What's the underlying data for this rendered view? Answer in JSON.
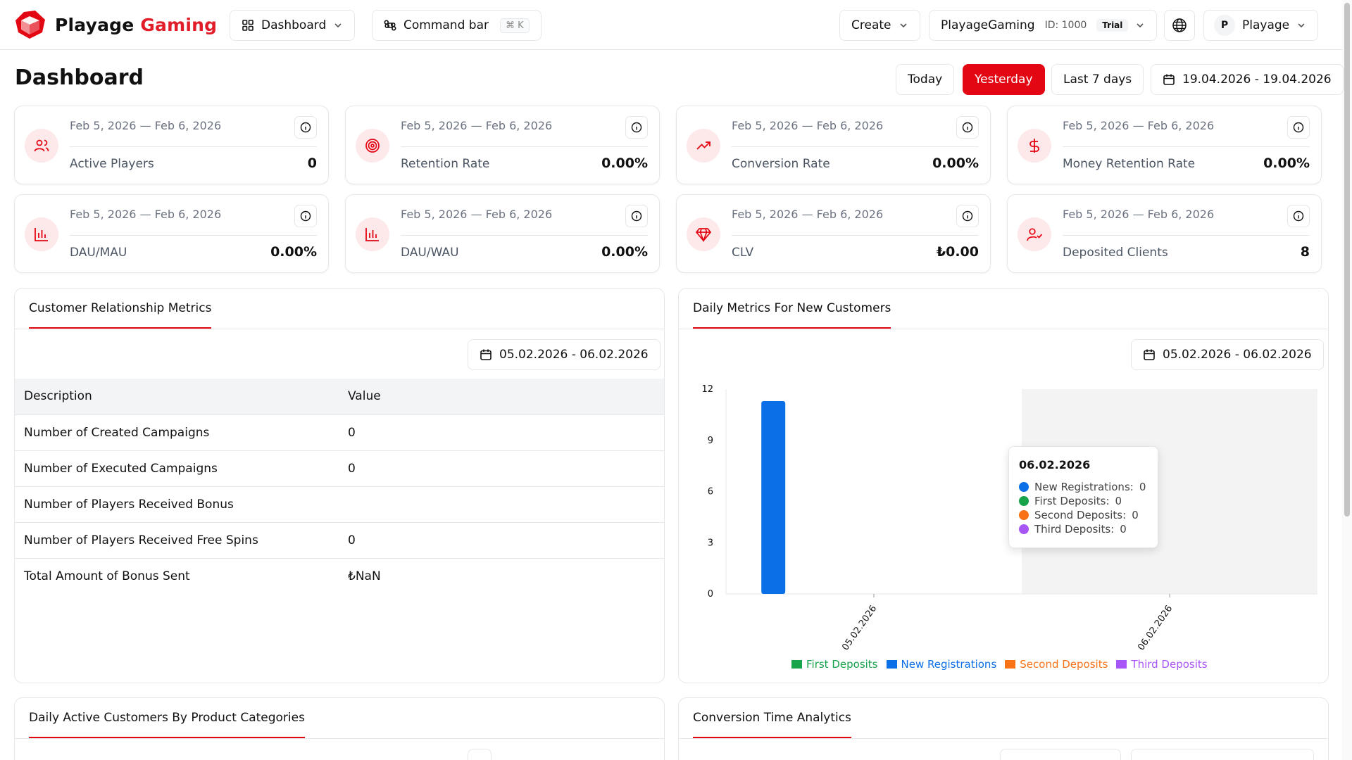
{
  "brand": {
    "name_part1": "Playage",
    "name_part2": "Gaming"
  },
  "topbar": {
    "dashboard_label": "Dashboard",
    "command_bar_label": "Command bar",
    "command_shortcut": "⌘ K",
    "create_label": "Create",
    "org_name": "PlayageGaming",
    "org_id": "ID: 1000",
    "org_badge": "Trial",
    "user_initial": "P",
    "user_name": "Playage"
  },
  "page_title": "Dashboard",
  "ranges": {
    "today": "Today",
    "yesterday": "Yesterday",
    "last7": "Last 7 days",
    "custom": "19.04.2026 - 19.04.2026"
  },
  "kpis": [
    {
      "date": "Feb 5, 2026 — Feb 6, 2026",
      "label": "Active Players",
      "value": "0",
      "icon": "users-icon"
    },
    {
      "date": "Feb 5, 2026 — Feb 6, 2026",
      "label": "Retention Rate",
      "value": "0.00%",
      "icon": "target-icon"
    },
    {
      "date": "Feb 5, 2026 — Feb 6, 2026",
      "label": "Conversion Rate",
      "value": "0.00%",
      "icon": "trending-up-icon"
    },
    {
      "date": "Feb 5, 2026 — Feb 6, 2026",
      "label": "Money Retention Rate",
      "value": "0.00%",
      "icon": "dollar-icon"
    },
    {
      "date": "Feb 5, 2026 — Feb 6, 2026",
      "label": "DAU/MAU",
      "value": "0.00%",
      "icon": "bar-chart-icon"
    },
    {
      "date": "Feb 5, 2026 — Feb 6, 2026",
      "label": "DAU/WAU",
      "value": "0.00%",
      "icon": "bar-chart-icon"
    },
    {
      "date": "Feb 5, 2026 — Feb 6, 2026",
      "label": "CLV",
      "value": "₺0.00",
      "icon": "gem-icon"
    },
    {
      "date": "Feb 5, 2026 — Feb 6, 2026",
      "label": "Deposited Clients",
      "value": "8",
      "icon": "user-check-icon"
    }
  ],
  "crm": {
    "tab": "Customer Relationship Metrics",
    "date_range": "05.02.2026 - 06.02.2026",
    "headers": {
      "description": "Description",
      "value": "Value"
    },
    "rows": [
      {
        "description": "Number of Created Campaigns",
        "value": "0"
      },
      {
        "description": "Number of Executed Campaigns",
        "value": "0"
      },
      {
        "description": "Number of Players Received Bonus",
        "value": ""
      },
      {
        "description": "Number of Players Received Free Spins",
        "value": "0"
      },
      {
        "description": "Total Amount of Bonus Sent",
        "value": "₺NaN"
      }
    ]
  },
  "daily": {
    "tab": "Daily Metrics For New Customers",
    "date_range": "05.02.2026 - 06.02.2026",
    "tooltip": {
      "date": "06.02.2026",
      "rows": [
        {
          "label": "New Registrations:",
          "value": "0"
        },
        {
          "label": "First Deposits:",
          "value": "0"
        },
        {
          "label": "Second Deposits:",
          "value": "0"
        },
        {
          "label": "Third Deposits:",
          "value": "0"
        }
      ]
    }
  },
  "chart_data": {
    "type": "bar",
    "categories": [
      "05.02.2026",
      "06.02.2026"
    ],
    "series": [
      {
        "name": "First Deposits",
        "values": [
          0,
          0
        ],
        "color": "#16a34a"
      },
      {
        "name": "New Registrations",
        "values": [
          11.3,
          0
        ],
        "color": "#0b6fe8"
      },
      {
        "name": "Second Deposits",
        "values": [
          0,
          0
        ],
        "color": "#f97316"
      },
      {
        "name": "Third Deposits",
        "values": [
          0,
          0
        ],
        "color": "#a855f7"
      }
    ],
    "yticks": [
      "0",
      "3",
      "6",
      "9",
      "12"
    ],
    "ylim": [
      0,
      12
    ],
    "highlight_category": "06.02.2026",
    "legend_position": "bottom"
  },
  "bottom_panels": {
    "left_tab": "Daily Active Customers By Product Categories",
    "right_tab": "Conversion Time Analytics"
  },
  "colors": {
    "accent": "#e30613",
    "icon_bg": "#fde8ea"
  }
}
